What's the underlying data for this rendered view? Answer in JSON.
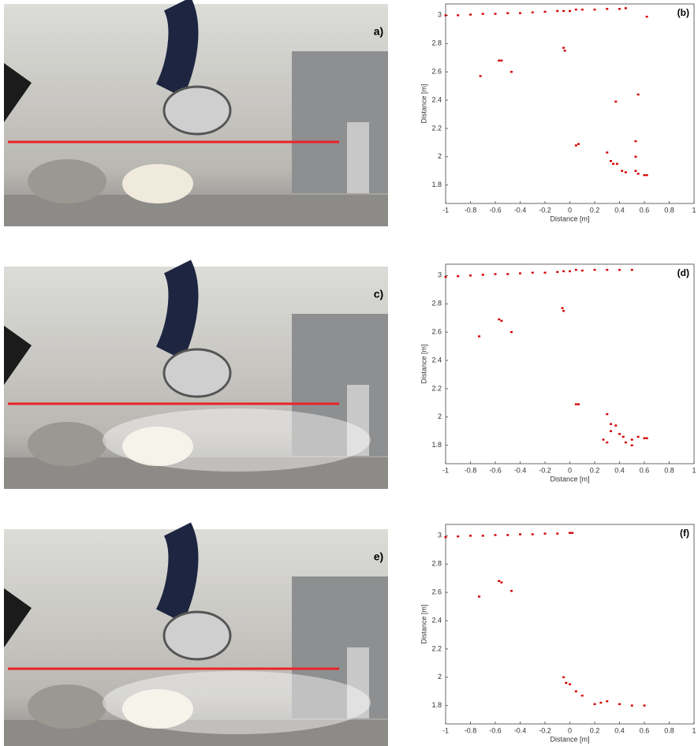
{
  "photo_panels": [
    {
      "label": "a)"
    },
    {
      "label": "c)"
    },
    {
      "label": "e)"
    }
  ],
  "chart_data": [
    {
      "type": "scatter",
      "annotation": "(b)",
      "xlabel": "Distance [m]",
      "ylabel": "Distance [m]",
      "color": "#d40000",
      "xlim": [
        -1,
        1
      ],
      "ylim": [
        1.67,
        3.08
      ],
      "xticks": [
        -1,
        -0.8,
        -0.6,
        -0.4,
        -0.2,
        0,
        0.2,
        0.4,
        0.6,
        0.8,
        1
      ],
      "yticks": [
        1.8,
        2,
        2.2,
        2.4,
        2.6,
        2.8,
        3
      ],
      "x": [
        -1,
        -0.9,
        -0.8,
        -0.7,
        -0.6,
        -0.5,
        -0.4,
        -0.3,
        -0.2,
        -0.1,
        -0.05,
        0,
        0.05,
        0.1,
        0.2,
        0.3,
        0.4,
        0.45,
        0.62,
        -0.72,
        -0.57,
        -0.55,
        -0.47,
        -0.05,
        -0.04,
        0.37,
        0.55,
        0.05,
        0.07,
        0.3,
        0.33,
        0.35,
        0.38,
        0.42,
        0.45,
        0.53,
        0.53,
        0.53,
        0.55,
        0.6,
        0.62
      ],
      "y": [
        3.0,
        3.0,
        3.005,
        3.01,
        3.01,
        3.015,
        3.015,
        3.02,
        3.025,
        3.03,
        3.03,
        3.03,
        3.04,
        3.04,
        3.04,
        3.045,
        3.045,
        3.05,
        2.99,
        2.57,
        2.68,
        2.68,
        2.6,
        2.77,
        2.75,
        2.39,
        2.44,
        2.08,
        2.09,
        2.03,
        1.97,
        1.95,
        1.95,
        1.9,
        1.89,
        2.11,
        2.0,
        1.9,
        1.88,
        1.87,
        1.87
      ]
    },
    {
      "type": "scatter",
      "annotation": "(d)",
      "xlabel": "Distance [m]",
      "ylabel": "Distance [m]",
      "color": "#d40000",
      "xlim": [
        -1,
        1
      ],
      "ylim": [
        1.67,
        3.08
      ],
      "xticks": [
        -1,
        -0.8,
        -0.6,
        -0.4,
        -0.2,
        0,
        0.2,
        0.4,
        0.6,
        0.8,
        1
      ],
      "yticks": [
        1.8,
        2,
        2.2,
        2.4,
        2.6,
        2.8,
        3
      ],
      "x": [
        -1,
        -0.9,
        -0.8,
        -0.7,
        -0.6,
        -0.5,
        -0.4,
        -0.3,
        -0.2,
        -0.1,
        -0.05,
        0,
        0.05,
        0.1,
        0.2,
        0.3,
        0.4,
        0.5,
        -0.73,
        -0.57,
        -0.55,
        -0.47,
        -0.06,
        -0.05,
        0.05,
        0.07,
        0.3,
        0.33,
        0.37,
        0.33,
        0.27,
        0.3,
        0.4,
        0.43,
        0.45,
        0.5,
        0.55,
        0.6,
        0.62,
        0.5
      ],
      "y": [
        2.99,
        2.995,
        3.0,
        3.005,
        3.01,
        3.01,
        3.015,
        3.02,
        3.02,
        3.025,
        3.03,
        3.03,
        3.04,
        3.035,
        3.04,
        3.04,
        3.04,
        3.04,
        2.57,
        2.69,
        2.68,
        2.6,
        2.77,
        2.75,
        2.09,
        2.09,
        2.02,
        1.95,
        1.94,
        1.9,
        1.84,
        1.82,
        1.88,
        1.86,
        1.82,
        1.84,
        1.86,
        1.85,
        1.85,
        1.8
      ]
    },
    {
      "type": "scatter",
      "annotation": "(f)",
      "xlabel": "Distance [m]",
      "ylabel": "Distance [m]",
      "color": "#d40000",
      "xlim": [
        -1,
        1
      ],
      "ylim": [
        1.67,
        3.08
      ],
      "xticks": [
        -1,
        -0.8,
        -0.6,
        -0.4,
        -0.2,
        0,
        0.2,
        0.4,
        0.6,
        0.8,
        1
      ],
      "yticks": [
        1.8,
        2,
        2.2,
        2.4,
        2.6,
        2.8,
        3
      ],
      "x": [
        -1,
        -0.9,
        -0.8,
        -0.7,
        -0.6,
        -0.5,
        -0.4,
        -0.3,
        -0.2,
        -0.1,
        0,
        0.02,
        -0.73,
        -0.57,
        -0.55,
        -0.47,
        -0.05,
        -0.03,
        0,
        0.05,
        0.1,
        0.2,
        0.25,
        0.3,
        0.4,
        0.5,
        0.6
      ],
      "y": [
        2.99,
        2.995,
        3.0,
        3.0,
        3.005,
        3.005,
        3.01,
        3.01,
        3.015,
        3.015,
        3.02,
        3.02,
        2.57,
        2.68,
        2.67,
        2.61,
        2.0,
        1.96,
        1.95,
        1.9,
        1.87,
        1.81,
        1.82,
        1.83,
        1.81,
        1.8,
        1.8
      ]
    }
  ]
}
